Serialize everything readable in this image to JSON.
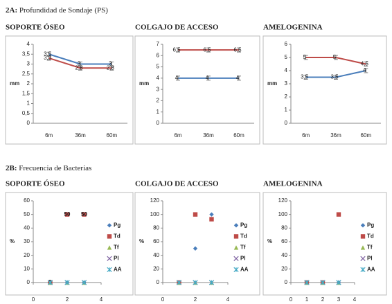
{
  "sections": [
    {
      "label": "2A:",
      "text": "Profundidad de Sondaje (PS)"
    },
    {
      "label": "2B:",
      "text": "Frecuencia de Bacterias"
    }
  ],
  "chart_data": [
    {
      "type": "line",
      "title": "SOPORTE ÓSEO",
      "y_label": "mm",
      "categories": [
        "6m",
        "36m",
        "60m"
      ],
      "ylim": [
        0,
        4
      ],
      "yticks": [
        0,
        {
          "value": 0.5,
          "label": "0,5"
        },
        1,
        {
          "value": 1.5,
          "label": "1,5"
        },
        2,
        {
          "value": 2.5,
          "label": "2,5"
        },
        3,
        {
          "value": 3.5,
          "label": "3,5"
        },
        4
      ],
      "series": [
        {
          "color": "#4a7ebb",
          "values": [
            3.5,
            3,
            3
          ],
          "value_labels": [
            "3,5",
            "3",
            "3"
          ]
        },
        {
          "color": "#be4b48",
          "values": [
            3.3,
            2.8,
            2.8
          ],
          "value_labels": [
            "3,3",
            "2,8",
            "2,8"
          ]
        }
      ]
    },
    {
      "type": "line",
      "title": "COLGAJO DE ACCESO",
      "y_label": "mm",
      "categories": [
        "6m",
        "36m",
        "60m"
      ],
      "ylim": [
        0,
        7
      ],
      "yticks": [
        0,
        1,
        2,
        3,
        4,
        5,
        6,
        7
      ],
      "series": [
        {
          "color": "#be4b48",
          "values": [
            6.5,
            6.5,
            6.5
          ],
          "value_labels": [
            "6,5",
            "6,5",
            "6,5"
          ]
        },
        {
          "color": "#4a7ebb",
          "values": [
            4,
            4,
            4
          ],
          "value_labels": [
            "4",
            "4",
            "4"
          ]
        }
      ]
    },
    {
      "type": "line",
      "title": "AMELOGENINA",
      "y_label": "mm",
      "categories": [
        "6m",
        "36m",
        "60m"
      ],
      "ylim": [
        0,
        6
      ],
      "yticks": [
        0,
        1,
        2,
        3,
        4,
        5,
        6
      ],
      "series": [
        {
          "color": "#be4b48",
          "values": [
            5,
            5,
            4.5
          ],
          "value_labels": [
            "5",
            "5",
            "4,5"
          ]
        },
        {
          "color": "#4a7ebb",
          "values": [
            3.5,
            3.5,
            4
          ],
          "value_labels": [
            "3,5",
            "3,5",
            "4"
          ]
        }
      ]
    },
    {
      "type": "scatter",
      "title": "SOPORTE ÓSEO",
      "y_label": "%",
      "x": [
        1,
        2,
        3
      ],
      "xlim": [
        0,
        4
      ],
      "xticks": [
        0,
        2,
        4
      ],
      "ylim": [
        0,
        60
      ],
      "yticks": [
        0,
        10,
        20,
        30,
        40,
        50,
        60
      ],
      "legend": "right",
      "series": [
        {
          "name": "Pg",
          "color": "#4a7ebb",
          "marker": "diamond",
          "values": [
            0,
            0,
            0
          ]
        },
        {
          "name": "Td",
          "color": "#be4b48",
          "marker": "square",
          "values": [
            0,
            50,
            50
          ],
          "data_labels": true
        },
        {
          "name": "Tf",
          "color": "#98b954",
          "marker": "triangle",
          "values": [
            0,
            0,
            0
          ]
        },
        {
          "name": "Pl",
          "color": "#7d60a0",
          "marker": "x",
          "values": [
            0,
            0,
            0
          ]
        },
        {
          "name": "AA",
          "color": "#46aac5",
          "marker": "asterisk",
          "values": [
            0,
            0,
            0
          ]
        }
      ]
    },
    {
      "type": "scatter",
      "title": "COLGAJO DE ACCESO",
      "y_label": "%",
      "x": [
        1,
        2,
        3
      ],
      "xlim": [
        0,
        4
      ],
      "xticks": [
        0,
        2,
        4
      ],
      "ylim": [
        0,
        120
      ],
      "yticks": [
        0,
        20,
        40,
        60,
        80,
        100,
        120
      ],
      "legend": "right",
      "series": [
        {
          "name": "Pg",
          "color": "#4a7ebb",
          "marker": "diamond",
          "values": [
            0,
            50,
            100
          ]
        },
        {
          "name": "Td",
          "color": "#be4b48",
          "marker": "square",
          "values": [
            0,
            100,
            93
          ]
        },
        {
          "name": "Tf",
          "color": "#98b954",
          "marker": "triangle",
          "values": [
            0,
            0,
            0
          ]
        },
        {
          "name": "Pl",
          "color": "#7d60a0",
          "marker": "x",
          "values": [
            0,
            0,
            0
          ]
        },
        {
          "name": "AA",
          "color": "#46aac5",
          "marker": "asterisk",
          "values": [
            0,
            0,
            0
          ]
        }
      ]
    },
    {
      "type": "scatter",
      "title": "AMELOGENINA",
      "y_label": "%",
      "x": [
        1,
        2,
        3
      ],
      "xlim": [
        0,
        4
      ],
      "xticks": [
        0,
        1,
        2,
        3,
        4
      ],
      "ylim": [
        0,
        120
      ],
      "yticks": [
        0,
        20,
        40,
        60,
        80,
        100,
        120
      ],
      "legend": "right",
      "series": [
        {
          "name": "Pg",
          "color": "#4a7ebb",
          "marker": "diamond",
          "values": [
            0,
            0,
            0
          ]
        },
        {
          "name": "Td",
          "color": "#be4b48",
          "marker": "square",
          "values": [
            0,
            0,
            100
          ]
        },
        {
          "name": "Tf",
          "color": "#98b954",
          "marker": "triangle",
          "values": [
            0,
            0,
            0
          ]
        },
        {
          "name": "Pl",
          "color": "#7d60a0",
          "marker": "x",
          "values": [
            0,
            0,
            0
          ]
        },
        {
          "name": "AA",
          "color": "#46aac5",
          "marker": "asterisk",
          "values": [
            0,
            0,
            0
          ]
        }
      ]
    }
  ]
}
